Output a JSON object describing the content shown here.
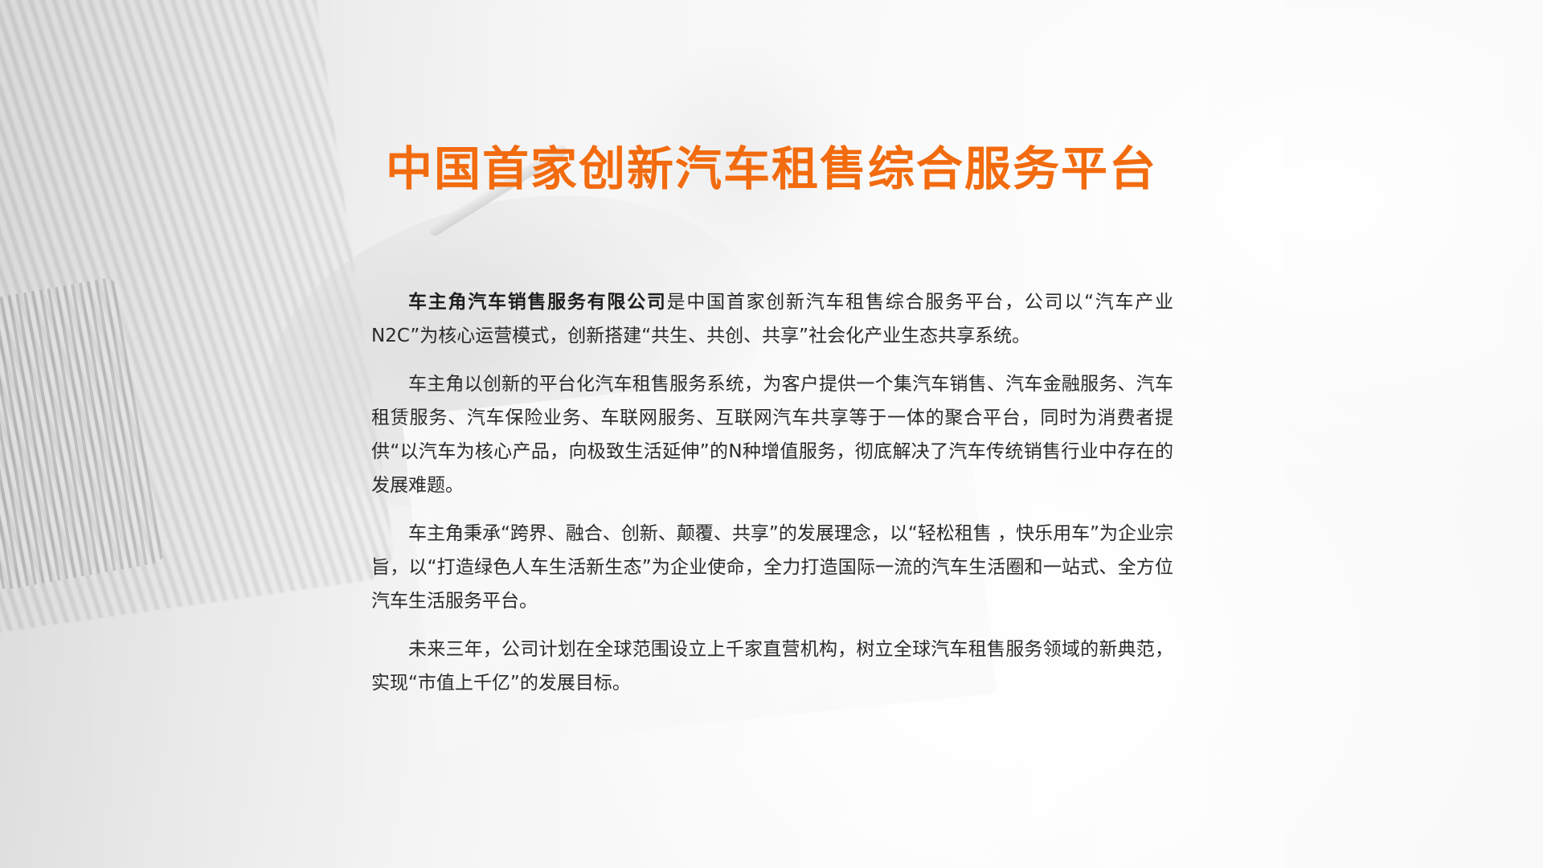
{
  "title": "中国首家创新汽车租售综合服务平台",
  "paragraphs": {
    "p1": {
      "bold": "车主角汽车销售服务有限公司",
      "text": "是中国首家创新汽车租售综合服务平台，公司以“汽车产业N2C”为核心运营模式，创新搭建“共生、共创、共享”社会化产业生态共享系统。"
    },
    "p2": {
      "text": "车主角以创新的平台化汽车租售服务系统，为客户提供一个集汽车销售、汽车金融服务、汽车租赁服务、汽车保险业务、车联网服务、互联网汽车共享等于一体的聚合平台，同时为消费者提供“以汽车为核心产品，向极致生活延伸”的N种增值服务，彻底解决了汽车传统销售行业中存在的发展难题。"
    },
    "p3": {
      "text": "车主角秉承“跨界、融合、创新、颠覆、共享”的发展理念，以“轻松租售 ，快乐用车”为企业宗旨，以“打造绿色人车生活新生态”为企业使命，全力打造国际一流的汽车生活圈和一站式、全方位汽车生活服务平台。"
    },
    "p4": {
      "text": "未来三年，公司计划在全球范围设立上千家直营机构，树立全球汽车租售服务领域的新典范，实现“市值上千亿”的发展目标。"
    }
  },
  "colors": {
    "title": "#f26b0f",
    "body_text": "#2b2b2b"
  }
}
